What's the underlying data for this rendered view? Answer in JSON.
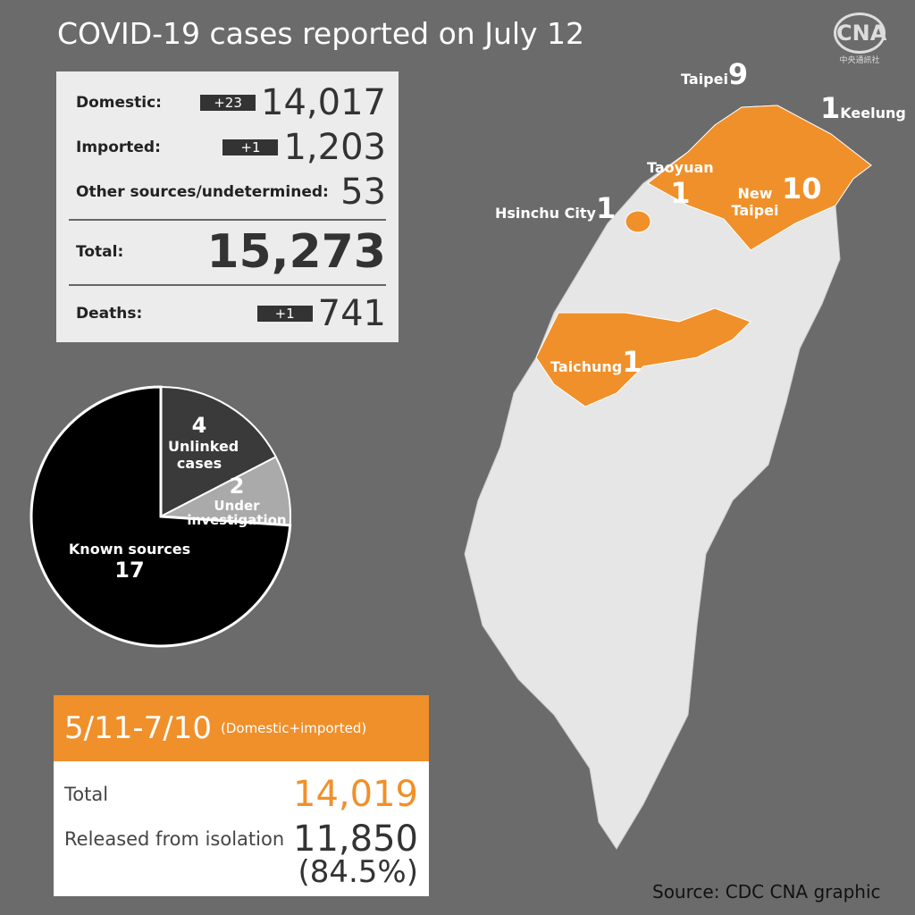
{
  "title": "COVID-19 cases reported on July 12",
  "logo": {
    "mark": "CNA",
    "text": "中央通訊社"
  },
  "summary": {
    "rows": [
      {
        "label": "Domestic:",
        "change": "+23",
        "value": "14,017"
      },
      {
        "label": "Imported:",
        "change": "+1",
        "value": "1,203"
      },
      {
        "label": "Other sources/undetermined:",
        "value": "53"
      },
      {
        "label": "Total:",
        "value": "15,273"
      },
      {
        "label": "Deaths:",
        "change": "+1",
        "value": "741"
      }
    ]
  },
  "chart_data": {
    "type": "pie",
    "categories": [
      "Unlinked cases",
      "Under investigation",
      "Known sources"
    ],
    "values": [
      4,
      2,
      17
    ],
    "colors": [
      "#3a3a3a",
      "#aaaaaa",
      "#000000"
    ]
  },
  "map": {
    "regions": [
      {
        "name": "Taipei",
        "count": 9
      },
      {
        "name": "Keelung",
        "count": 1
      },
      {
        "name": "Taoyuan",
        "count": 1
      },
      {
        "name": "New Taipei",
        "count": 10
      },
      {
        "name": "Hsinchu City",
        "count": 1
      },
      {
        "name": "Taichung",
        "count": 1
      }
    ]
  },
  "period": {
    "title": "5/11-7/10",
    "note": "(Domestic+imported)",
    "rows": [
      {
        "label": "Total",
        "value": "14,019"
      },
      {
        "label": "Released from isolation",
        "value": "11,850",
        "share": "(84.5%)"
      }
    ]
  },
  "footer": "Source: CDC  CNA graphic"
}
